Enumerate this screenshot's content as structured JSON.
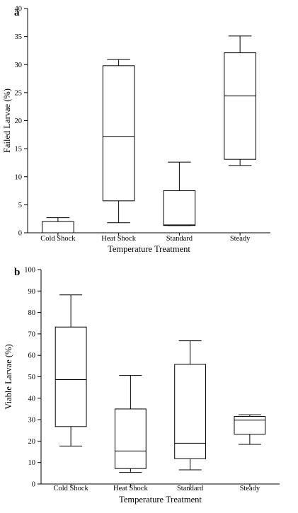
{
  "colors": {
    "axis": "#000000",
    "box_stroke": "#000000",
    "box_fill": "#ffffff",
    "background": "#ffffff"
  },
  "chart_data": [
    {
      "type": "box",
      "panel_label": "a",
      "xlabel": "Temperature Treatment",
      "ylabel": "Failed Larvae (%)",
      "ylim": [
        0,
        40
      ],
      "yticks": [
        "0",
        "5",
        "10",
        "15",
        "20",
        "25",
        "30",
        "35",
        "40"
      ],
      "categories": [
        "Cold Shock",
        "Heat Shock",
        "Standard",
        "Steady"
      ],
      "boxes": [
        {
          "min": 0,
          "q1": 0,
          "median": 0,
          "q3": 2.0,
          "max": 2.7
        },
        {
          "min": 1.8,
          "q1": 5.7,
          "median": 17.2,
          "q3": 29.8,
          "max": 30.9
        },
        {
          "min": 1.3,
          "q1": 1.3,
          "median": 1.4,
          "q3": 7.5,
          "max": 12.6
        },
        {
          "min": 12.0,
          "q1": 13.1,
          "median": 24.4,
          "q3": 32.1,
          "max": 35.1
        }
      ],
      "grid": false
    },
    {
      "type": "box",
      "panel_label": "b",
      "xlabel": "Temperature Treatment",
      "ylabel": "Viable Larvae (%)",
      "ylim": [
        0,
        100
      ],
      "yticks": [
        "0",
        "10",
        "20",
        "30",
        "40",
        "50",
        "60",
        "70",
        "80",
        "90",
        "100"
      ],
      "categories": [
        "Cold Shock",
        "Heat Shock",
        "Standard",
        "Steady"
      ],
      "boxes": [
        {
          "min": 17.7,
          "q1": 26.8,
          "median": 48.7,
          "q3": 73.2,
          "max": 88.2
        },
        {
          "min": 5.4,
          "q1": 7.2,
          "median": 15.4,
          "q3": 35.0,
          "max": 50.6
        },
        {
          "min": 6.6,
          "q1": 11.8,
          "median": 19.0,
          "q3": 55.8,
          "max": 66.8
        },
        {
          "min": 18.5,
          "q1": 23.2,
          "median": 29.8,
          "q3": 31.5,
          "max": 32.3
        }
      ],
      "grid": false
    }
  ]
}
